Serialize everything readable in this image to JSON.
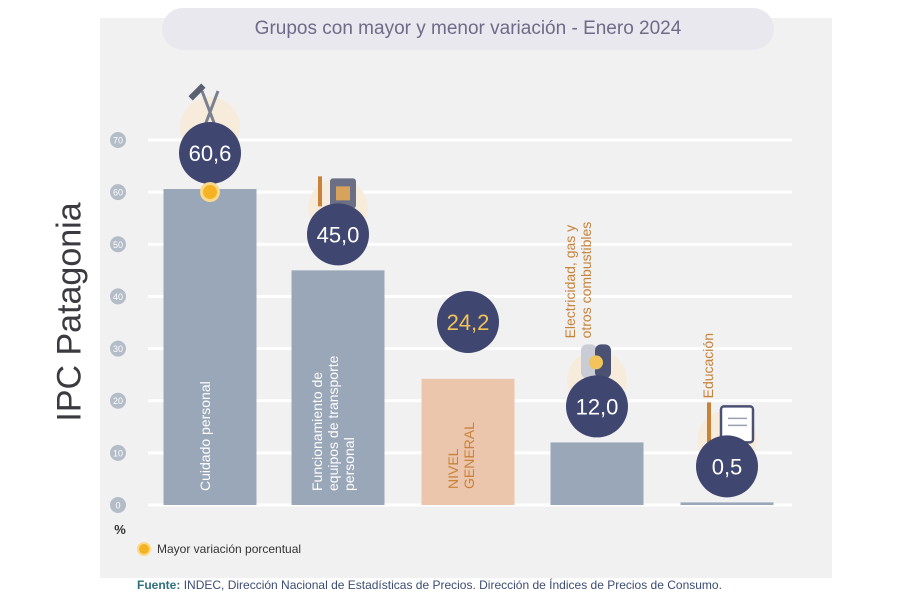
{
  "header": {
    "title": "Grupos con mayor y menor variación - Enero 2024"
  },
  "side_title": "IPC Patagonia",
  "legend": {
    "label": "Mayor variación porcentual"
  },
  "source": {
    "label": "Fuente:",
    "text": "INDEC, Dirección Nacional de Estadísticas de Precios. Dirección de Índices de Precios de Consumo."
  },
  "colors": {
    "bar": "#9aa7b8",
    "highlight_bar": "#ebc6ac",
    "badge": "#3f4670",
    "highlight_badge_text": "#f2c45a",
    "label_on_bar": "#ffffff",
    "label_above_bar": "#c8823a",
    "legend_dot": "#f5b323"
  },
  "chart_data": {
    "type": "bar",
    "title": "Grupos con mayor y menor variación - Enero 2024",
    "xlabel": "",
    "ylabel": "%",
    "ylim": [
      0,
      70
    ],
    "yticks": [
      0,
      10,
      20,
      30,
      40,
      50,
      60,
      70
    ],
    "grid": true,
    "categories": [
      "Cuidado personal",
      "Funcionamiento de equipos de transporte personal",
      "NIVEL GENERAL",
      "Electricidad, gas y otros combustibles",
      "Educación"
    ],
    "values": [
      60.6,
      45.0,
      24.2,
      12.0,
      0.5
    ],
    "value_labels": [
      "60,6",
      "45,0",
      "24,2",
      "12,0",
      "0,5"
    ],
    "icons": [
      "scissors-comb-icon",
      "fuel-can-icon",
      "",
      "gas-cylinder-icon",
      "notebook-pencil-icon"
    ],
    "highlight_category": "NIVEL GENERAL",
    "max_variation_category": "Cuidado personal"
  }
}
